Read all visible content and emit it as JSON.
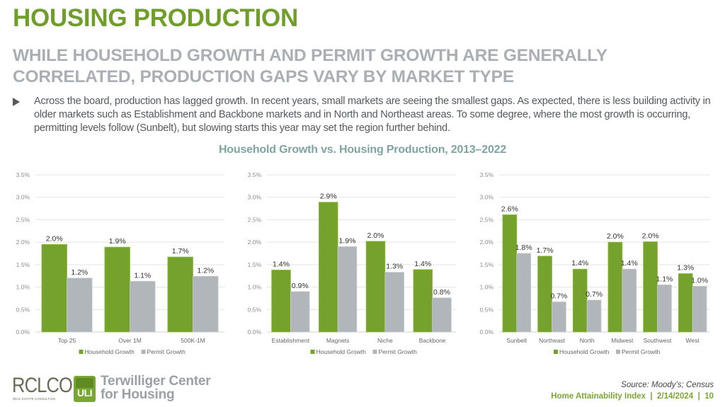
{
  "header": {
    "title": "HOUSING PRODUCTION",
    "subtitle": "WHILE HOUSEHOLD GROWTH AND PERMIT GROWTH ARE GENERALLY CORRELATED, PRODUCTION GAPS VARY BY MARKET TYPE"
  },
  "body": {
    "bullet_icon": "triangle-right-icon",
    "bullet_text": "Across the board, production has lagged growth. In recent years, small markets are seeing the smallest gaps. As expected, there is less building activity in older markets such as Establishment and Backbone markets and in North and Northeast areas. To some degree, where the most growth is occurring, permitting levels follow (Sunbelt), but slowing starts this year may set the region further behind."
  },
  "figure_title": "Household Growth vs. Housing Production, 2013–2022",
  "colors": {
    "household": "#75a22c",
    "permit": "#b1b6bb",
    "gridline": "#e3e3e3",
    "axis_text": "#8c8c8c",
    "label_text": "#333333"
  },
  "chart_data": [
    {
      "type": "bar",
      "title": "",
      "xlabel": "",
      "ylabel": "",
      "ylim": [
        0,
        3.5
      ],
      "yticks": [
        "0.0%",
        "0.5%",
        "1.0%",
        "1.5%",
        "2.0%",
        "2.5%",
        "3.0%",
        "3.5%"
      ],
      "grid": true,
      "legend": "bottom",
      "categories": [
        "Top 25",
        "Over 1M",
        "500K-1M"
      ],
      "series": [
        {
          "name": "Household Growth",
          "values": [
            1.95,
            1.89,
            1.67
          ],
          "labels": [
            "2.0%",
            "1.9%",
            "1.7%"
          ]
        },
        {
          "name": "Permit Growth",
          "values": [
            1.2,
            1.13,
            1.24
          ],
          "labels": [
            "1.2%",
            "1.1%",
            "1.2%"
          ]
        }
      ]
    },
    {
      "type": "bar",
      "title": "",
      "xlabel": "",
      "ylabel": "",
      "ylim": [
        0,
        3.5
      ],
      "yticks": [
        "0.0%",
        "0.5%",
        "1.0%",
        "1.5%",
        "2.0%",
        "2.5%",
        "3.0%",
        "3.5%"
      ],
      "grid": true,
      "legend": "bottom",
      "categories": [
        "Establishment",
        "Magnets",
        "Niche",
        "Backbone"
      ],
      "series": [
        {
          "name": "Household Growth",
          "values": [
            1.38,
            2.89,
            2.02,
            1.39
          ],
          "labels": [
            "1.4%",
            "2.9%",
            "2.0%",
            "1.4%"
          ]
        },
        {
          "name": "Permit Growth",
          "values": [
            0.9,
            1.9,
            1.33,
            0.76
          ],
          "labels": [
            "0.9%",
            "1.9%",
            "1.3%",
            "0.8%"
          ]
        }
      ]
    },
    {
      "type": "bar",
      "title": "",
      "xlabel": "",
      "ylabel": "",
      "ylim": [
        0,
        3.5
      ],
      "yticks": [
        "0.0%",
        "0.5%",
        "1.0%",
        "1.5%",
        "2.0%",
        "2.5%",
        "3.0%",
        "3.5%"
      ],
      "grid": true,
      "legend": "bottom",
      "categories": [
        "Sunbelt",
        "Northeast",
        "North",
        "Midwest",
        "Southwest",
        "West"
      ],
      "series": [
        {
          "name": "Household Growth",
          "values": [
            2.61,
            1.69,
            1.4,
            2.0,
            2.01,
            1.3
          ],
          "labels": [
            "2.6%",
            "1.7%",
            "1.4%",
            "2.0%",
            "2.0%",
            "1.3%"
          ]
        },
        {
          "name": "Permit Growth",
          "values": [
            1.75,
            0.67,
            0.71,
            1.4,
            1.05,
            1.02
          ],
          "labels": [
            "1.8%",
            "0.7%",
            "0.7%",
            "1.4%",
            "1.1%",
            "1.0%"
          ]
        }
      ]
    }
  ],
  "footer": {
    "source": "Source: Moody’s; Census",
    "index_line": "Home Attainability Index  |  2/14/2024  |  10",
    "logo_rclco": "RCLCO",
    "logo_rclco_sub": "REAL ESTATE CONSULTING",
    "logo_uli": "ULI",
    "partner_line1": "Terwilliger Center",
    "partner_line2": "for Housing"
  }
}
